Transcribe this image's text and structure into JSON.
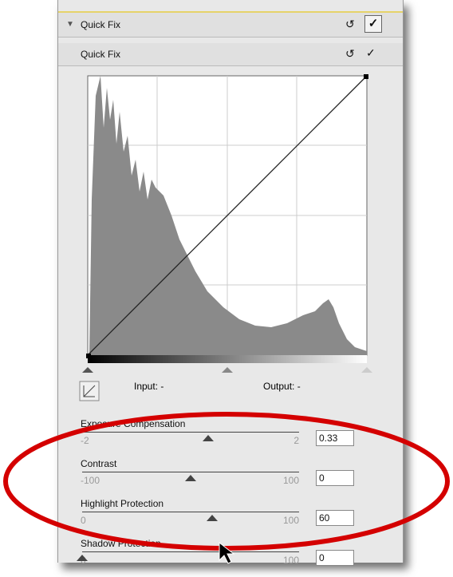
{
  "header": {
    "title": "Quick Fix"
  },
  "subheader": {
    "title": "Quick Fix"
  },
  "curve": {
    "input_label": "Input: -",
    "output_label": "Output: -"
  },
  "sliders": [
    {
      "label": "Exposure Compensation",
      "min": -2,
      "max": 2,
      "value": 0.33
    },
    {
      "label": "Contrast",
      "min": -100,
      "max": 100,
      "value": 0
    },
    {
      "label": "Highlight Protection",
      "min": 0,
      "max": 100,
      "value": 60
    },
    {
      "label": "Shadow Protection",
      "min": 0,
      "max": 100,
      "value": 0
    }
  ]
}
